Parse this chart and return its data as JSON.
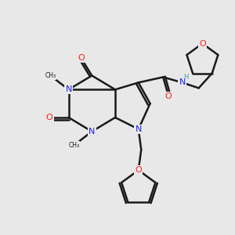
{
  "background_color": "#e8e8e8",
  "bond_color": "#1a1a1a",
  "atom_colors": {
    "N": "#2020ff",
    "O": "#ff2020",
    "C": "#1a1a1a",
    "H": "#4a9a9a"
  },
  "title": "",
  "figsize": [
    3.0,
    3.0
  ],
  "dpi": 100
}
